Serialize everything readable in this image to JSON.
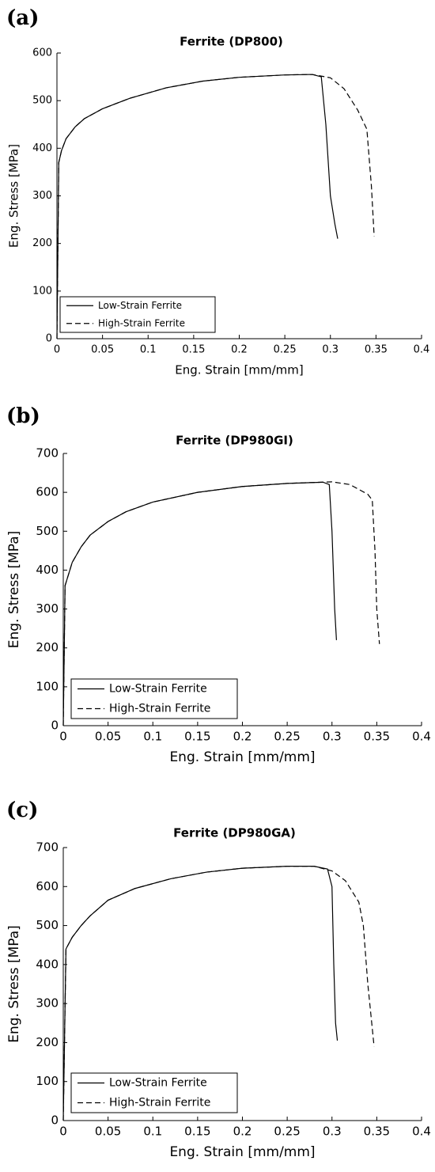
{
  "chart_data": [
    {
      "type": "line",
      "panel_label": "(a)",
      "title": "Ferrite (DP800)",
      "x_label": "Eng. Strain [mm/mm]",
      "y_label": "Eng. Stress [MPa]",
      "xlim": [
        0,
        0.4
      ],
      "xticks": [
        0,
        0.05,
        0.1,
        0.15,
        0.2,
        0.25,
        0.3,
        0.35,
        0.4
      ],
      "ylim": [
        0,
        600
      ],
      "yticks": [
        0,
        100,
        200,
        300,
        400,
        500,
        600
      ],
      "legend": "lower left",
      "series": [
        {
          "name": "Low-Strain Ferrite",
          "color": "#000000",
          "dashed": false,
          "x": [
            0,
            0.002,
            0.005,
            0.01,
            0.02,
            0.03,
            0.05,
            0.08,
            0.12,
            0.16,
            0.2,
            0.25,
            0.28,
            0.29,
            0.295,
            0.3,
            0.305,
            0.308
          ],
          "values": [
            0,
            370,
            395,
            420,
            445,
            462,
            483,
            505,
            527,
            541,
            549,
            554,
            555,
            550,
            450,
            300,
            240,
            210
          ]
        },
        {
          "name": "High-Strain Ferrite",
          "color": "#000000",
          "dashed": true,
          "x": [
            0,
            0.002,
            0.005,
            0.01,
            0.02,
            0.03,
            0.05,
            0.08,
            0.12,
            0.16,
            0.2,
            0.25,
            0.28,
            0.3,
            0.315,
            0.33,
            0.34,
            0.345,
            0.348
          ],
          "values": [
            0,
            370,
            395,
            420,
            445,
            462,
            483,
            505,
            527,
            541,
            549,
            554,
            555,
            548,
            525,
            480,
            440,
            320,
            215
          ]
        }
      ]
    },
    {
      "type": "line",
      "panel_label": "(b)",
      "title": "Ferrite (DP980GI)",
      "x_label": "Eng. Strain [mm/mm]",
      "y_label": "Eng. Stress [MPa]",
      "xlim": [
        0,
        0.4
      ],
      "xticks": [
        0,
        0.05,
        0.1,
        0.15,
        0.2,
        0.25,
        0.3,
        0.35,
        0.4
      ],
      "ylim": [
        0,
        700
      ],
      "yticks": [
        0,
        100,
        200,
        300,
        400,
        500,
        600,
        700
      ],
      "legend": "lower left",
      "series": [
        {
          "name": "Low-Strain Ferrite",
          "color": "#000000",
          "dashed": false,
          "x": [
            0,
            0.002,
            0.01,
            0.02,
            0.03,
            0.05,
            0.07,
            0.1,
            0.15,
            0.2,
            0.25,
            0.29,
            0.297,
            0.3,
            0.303,
            0.305
          ],
          "values": [
            0,
            360,
            420,
            460,
            490,
            525,
            550,
            575,
            600,
            615,
            623,
            626,
            620,
            500,
            300,
            220
          ]
        },
        {
          "name": "High-Strain Ferrite",
          "color": "#000000",
          "dashed": true,
          "x": [
            0,
            0.002,
            0.01,
            0.02,
            0.03,
            0.05,
            0.07,
            0.1,
            0.15,
            0.2,
            0.25,
            0.3,
            0.32,
            0.34,
            0.345,
            0.348,
            0.35,
            0.353
          ],
          "values": [
            0,
            360,
            420,
            460,
            490,
            525,
            550,
            575,
            600,
            615,
            623,
            627,
            620,
            595,
            580,
            450,
            300,
            210
          ]
        }
      ]
    },
    {
      "type": "line",
      "panel_label": "(c)",
      "title": "Ferrite (DP980GA)",
      "x_label": "Eng. Strain [mm/mm]",
      "y_label": "Eng. Stress [MPa]",
      "xlim": [
        0,
        0.4
      ],
      "xticks": [
        0,
        0.05,
        0.1,
        0.15,
        0.2,
        0.25,
        0.3,
        0.35,
        0.4
      ],
      "ylim": [
        0,
        700
      ],
      "yticks": [
        0,
        100,
        200,
        300,
        400,
        500,
        600,
        700
      ],
      "legend": "lower left",
      "series": [
        {
          "name": "Low-Strain Ferrite",
          "color": "#000000",
          "dashed": false,
          "x": [
            0,
            0.003,
            0.01,
            0.02,
            0.03,
            0.05,
            0.08,
            0.12,
            0.16,
            0.2,
            0.25,
            0.28,
            0.295,
            0.3,
            0.302,
            0.304,
            0.306
          ],
          "values": [
            0,
            440,
            470,
            500,
            525,
            565,
            595,
            620,
            637,
            647,
            652,
            652,
            645,
            600,
            400,
            250,
            205
          ]
        },
        {
          "name": "High-Strain Ferrite",
          "color": "#000000",
          "dashed": true,
          "x": [
            0,
            0.003,
            0.01,
            0.02,
            0.03,
            0.05,
            0.08,
            0.12,
            0.16,
            0.2,
            0.25,
            0.28,
            0.3,
            0.315,
            0.33,
            0.335,
            0.34,
            0.347
          ],
          "values": [
            0,
            440,
            470,
            500,
            525,
            565,
            595,
            620,
            637,
            647,
            652,
            652,
            640,
            615,
            560,
            500,
            350,
            190
          ]
        }
      ]
    }
  ]
}
